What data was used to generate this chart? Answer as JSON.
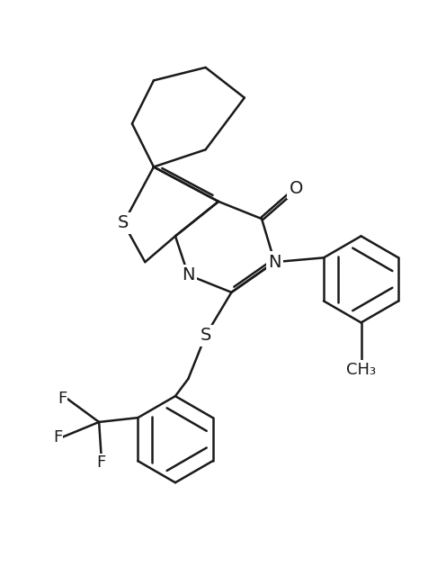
{
  "background_color": "#ffffff",
  "line_color": "#1a1a1a",
  "line_width": 1.8,
  "font_size": 14,
  "figsize": [
    4.86,
    6.4
  ],
  "dpi": 100,
  "xlim": [
    -1.5,
    8.5
  ],
  "ylim": [
    -3.5,
    9.5
  ]
}
